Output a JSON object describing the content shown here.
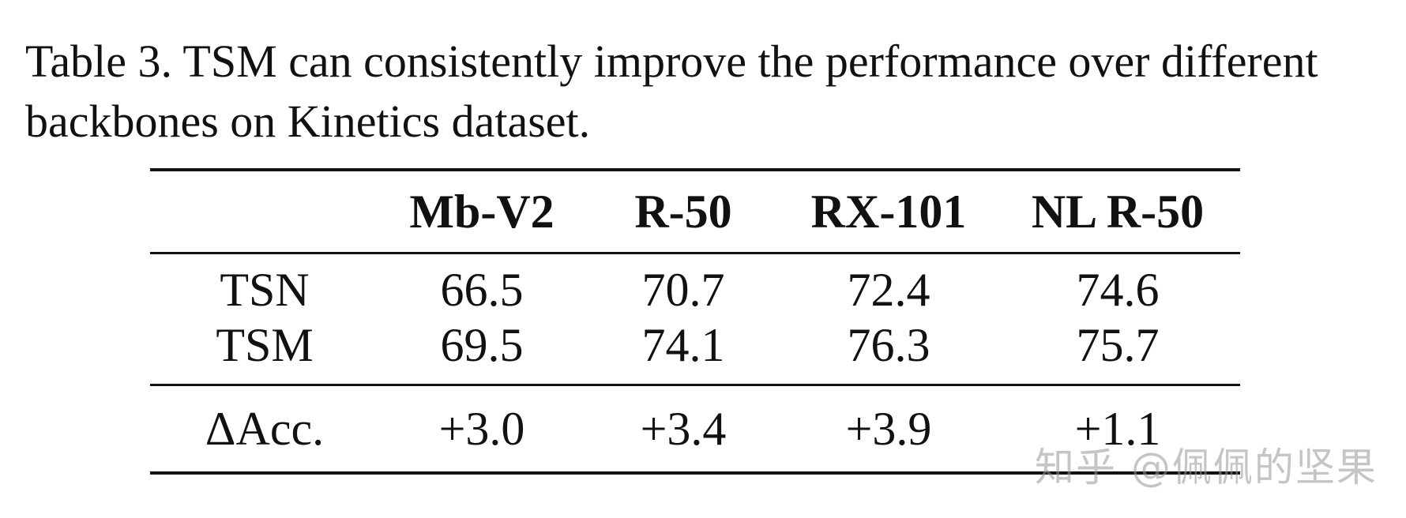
{
  "caption": "Table 3. TSM can consistently improve the performance over different backbones on Kinetics dataset.",
  "table": {
    "headers": [
      "",
      "Mb-V2",
      "R-50",
      "RX-101",
      "NL R-50"
    ],
    "rows": [
      {
        "label": "TSN",
        "values": [
          "66.5",
          "70.7",
          "72.4",
          "74.6"
        ]
      },
      {
        "label": "TSM",
        "values": [
          "69.5",
          "74.1",
          "76.3",
          "75.7"
        ]
      }
    ],
    "delta_row": {
      "label": "ΔAcc.",
      "values": [
        "+3.0",
        "+3.4",
        "+3.9",
        "+1.1"
      ]
    }
  },
  "watermark": "知乎 @佩佩的坚果"
}
